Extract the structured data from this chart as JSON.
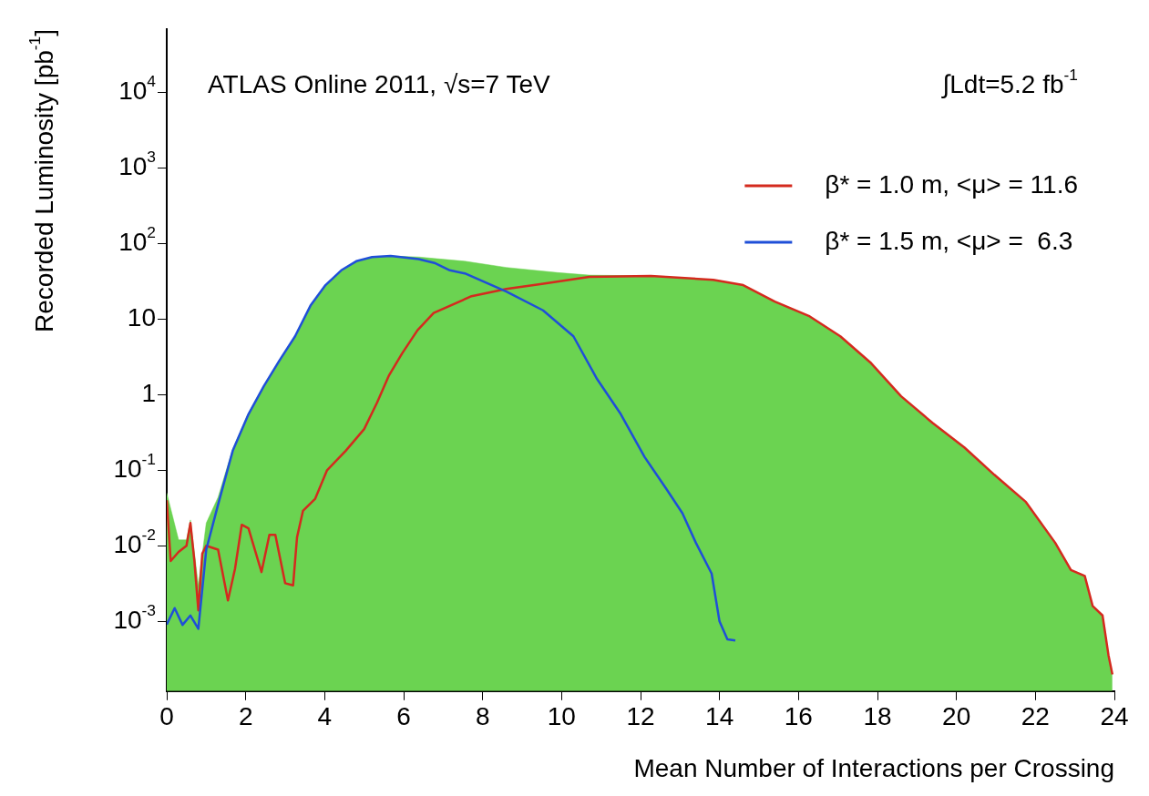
{
  "chart_data": {
    "type": "line",
    "xlabel": "Mean Number of Interactions per Crossing",
    "ylabel": "Recorded Luminosity [pb$^{-1}$]",
    "annotations": [
      "ATLAS Online 2011, √s=7 TeV",
      "∫Ldt=5.2 fb$^{-1}$"
    ],
    "log": "y",
    "grid": false,
    "legend": "top right",
    "marker": "none",
    "line_style": "solid",
    "xlim": [
      0,
      24
    ],
    "xticks": [
      0,
      2,
      4,
      6,
      8,
      10,
      12,
      14,
      16,
      18,
      20,
      22,
      24
    ],
    "ylim": [
      0.00012,
      68000
    ],
    "yticks": [
      {
        "value": 0.001,
        "label": "10$^{-3}$"
      },
      {
        "value": 0.01,
        "label": "10$^{-2}$"
      },
      {
        "value": 0.1,
        "label": "10$^{-1}$"
      },
      1,
      10,
      {
        "value": 100,
        "label": "10$^{2}$"
      },
      {
        "value": 1000,
        "label": "10$^{3}$"
      },
      {
        "value": 10000,
        "label": "10$^{4}$"
      }
    ],
    "series": [
      {
        "type": "area",
        "color": "#6bd351",
        "x": [
          0,
          0.3,
          0.5,
          0.6,
          0.8,
          1.0,
          1.3,
          1.67,
          2.07,
          2.46,
          2.85,
          3.25,
          3.64,
          4.02,
          4.42,
          4.8,
          5.2,
          5.67,
          6.38,
          6.78,
          7.55,
          8.6,
          9.9,
          10.7,
          12.26,
          13.84,
          14.6,
          15.4,
          16.26,
          17.06,
          17.84,
          18.6,
          19.4,
          20.2,
          20.96,
          21.76,
          22.5,
          22.9,
          23.25,
          23.45,
          23.7,
          23.85,
          23.95
        ],
        "values": [
          0.05,
          0.012,
          0.012,
          0.022,
          0.003,
          0.02,
          0.044,
          0.19,
          0.57,
          1.3,
          2.8,
          5.9,
          15,
          28,
          44,
          58,
          66,
          68,
          66,
          63,
          58,
          48,
          41,
          38,
          37,
          33,
          28,
          17,
          11,
          5.9,
          2.6,
          0.95,
          0.42,
          0.2,
          0.087,
          0.038,
          0.011,
          0.0048,
          0.004,
          0.0016,
          0.0012,
          0.00036,
          0.0002
        ]
      },
      {
        "name": "β* = 1.0 m, <μ> = 11.6",
        "color": "#d42a1e",
        "x": [
          0,
          0.1,
          0.3,
          0.5,
          0.6,
          0.7,
          0.8,
          0.9,
          1.0,
          1.3,
          1.55,
          1.73,
          1.9,
          2.07,
          2.4,
          2.6,
          2.75,
          3.0,
          3.2,
          3.3,
          3.45,
          3.76,
          4.06,
          4.53,
          5.0,
          5.33,
          5.63,
          5.96,
          6.35,
          6.76,
          7.72,
          8.6,
          9.5,
          10.7,
          12.26,
          13.84,
          14.6,
          15.4,
          16.26,
          17.06,
          17.84,
          18.6,
          19.4,
          20.2,
          20.96,
          21.76,
          22.5,
          22.9,
          23.25,
          23.45,
          23.7,
          23.85,
          23.95
        ],
        "values": [
          0.04,
          0.0063,
          0.0083,
          0.01,
          0.02,
          0.0063,
          0.0014,
          0.0079,
          0.01,
          0.0089,
          0.0019,
          0.005,
          0.019,
          0.017,
          0.0045,
          0.014,
          0.014,
          0.0032,
          0.003,
          0.013,
          0.029,
          0.042,
          0.1,
          0.18,
          0.35,
          0.79,
          1.8,
          3.5,
          7.1,
          12,
          20,
          25,
          29,
          36,
          37,
          33,
          28,
          17,
          11,
          5.9,
          2.6,
          0.95,
          0.42,
          0.2,
          0.087,
          0.038,
          0.011,
          0.0048,
          0.004,
          0.0016,
          0.0012,
          0.00036,
          0.0002
        ]
      },
      {
        "name": "β* = 1.5 m, <μ> =  6.3",
        "color": "#1f4fd8",
        "x": [
          0,
          0.2,
          0.4,
          0.6,
          0.8,
          1.0,
          1.3,
          1.67,
          2.07,
          2.46,
          2.85,
          3.25,
          3.64,
          4.02,
          4.42,
          4.8,
          5.2,
          5.67,
          6.38,
          6.78,
          7.17,
          7.55,
          8.6,
          9.53,
          10.3,
          10.9,
          11.5,
          12.1,
          12.66,
          13.06,
          13.4,
          13.8,
          14.0,
          14.2,
          14.4
        ],
        "values": [
          0.00091,
          0.0015,
          0.0009,
          0.0012,
          0.0008,
          0.0089,
          0.035,
          0.18,
          0.55,
          1.3,
          2.8,
          5.9,
          15,
          28,
          44,
          58,
          66,
          68,
          62,
          55,
          44,
          40,
          23,
          13,
          5.9,
          1.6,
          0.55,
          0.15,
          0.056,
          0.027,
          0.011,
          0.0043,
          0.001,
          0.00058,
          0.00056
        ]
      }
    ]
  }
}
